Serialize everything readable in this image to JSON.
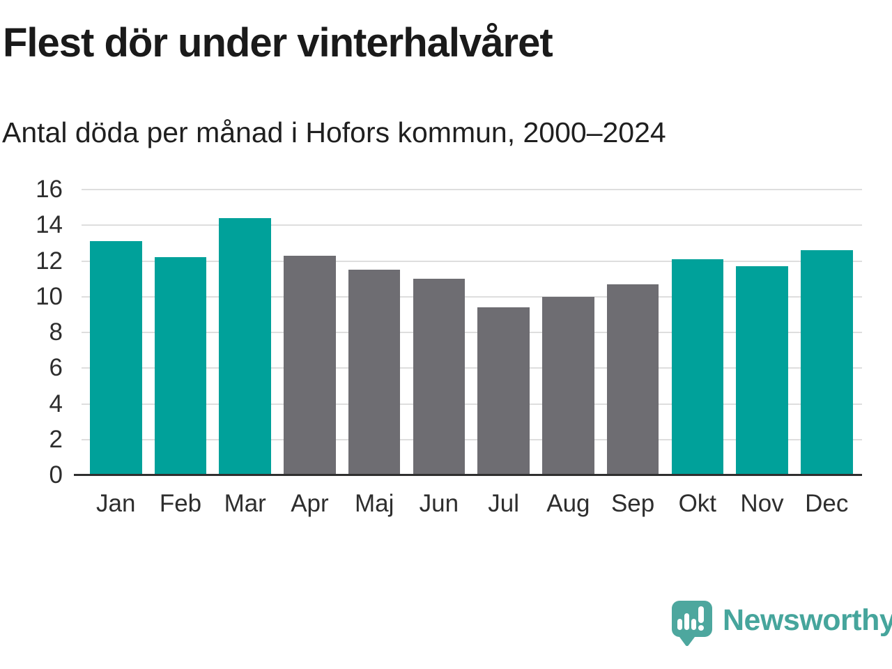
{
  "header": {
    "title": "Flest dör under vinterhalvåret",
    "subtitle": "Antal döda per månad i Hofors kommun, 2000–2024"
  },
  "chart_data": {
    "type": "bar",
    "title": "Flest dör under vinterhalvåret",
    "subtitle": "Antal döda per månad i Hofors kommun, 2000–2024",
    "categories": [
      "Jan",
      "Feb",
      "Mar",
      "Apr",
      "Maj",
      "Jun",
      "Jul",
      "Aug",
      "Sep",
      "Okt",
      "Nov",
      "Dec"
    ],
    "values": [
      13.1,
      12.2,
      14.4,
      12.3,
      11.5,
      11.0,
      9.4,
      10.0,
      10.7,
      12.1,
      11.7,
      12.6
    ],
    "bar_color_keys": [
      "winter",
      "winter",
      "winter",
      "summer",
      "summer",
      "summer",
      "summer",
      "summer",
      "summer",
      "winter",
      "winter",
      "winter"
    ],
    "colors": {
      "winter": "#00a19a",
      "summer": "#6e6d72"
    },
    "xlabel": "",
    "ylabel": "",
    "ylim": [
      0,
      16
    ],
    "yticks": [
      0,
      2,
      4,
      6,
      8,
      10,
      12,
      14,
      16
    ],
    "grid": true,
    "legend": "none"
  },
  "footer": {
    "brand": "Newsworthy"
  }
}
